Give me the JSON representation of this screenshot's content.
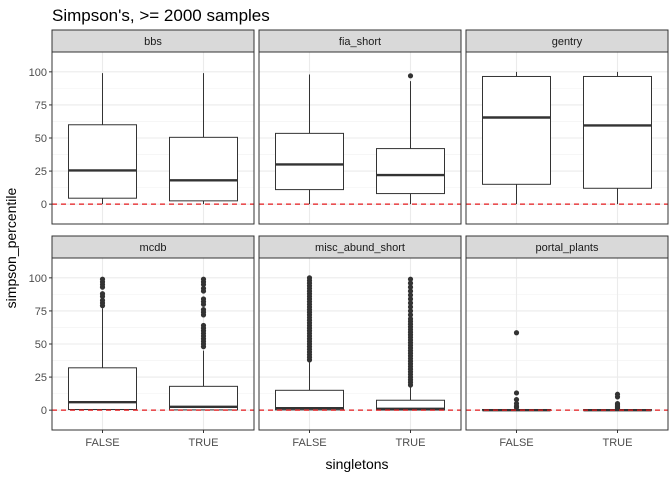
{
  "chart_data": {
    "type": "boxplot",
    "title": "Simpson's, >= 2000 samples",
    "xlabel": "singletons",
    "ylabel": "simpson_percentile",
    "categories": [
      "FALSE",
      "TRUE"
    ],
    "ylim": [
      -15,
      115
    ],
    "y_ticks": [
      0,
      25,
      50,
      75,
      100
    ],
    "y_tick_labels": [
      "0",
      "25",
      "50",
      "75",
      "100"
    ],
    "reference_line": {
      "y": 0,
      "style": "dashed",
      "color": "#e41a1c"
    },
    "grid": true,
    "facets": [
      {
        "name": "bbs",
        "boxes": [
          {
            "category": "FALSE",
            "min": 0,
            "q1": 4.5,
            "median": 25.5,
            "q3": 60,
            "max": 99,
            "outliers": []
          },
          {
            "category": "TRUE",
            "min": 0,
            "q1": 2.5,
            "median": 18,
            "q3": 50.5,
            "max": 99,
            "outliers": []
          }
        ]
      },
      {
        "name": "fia_short",
        "boxes": [
          {
            "category": "FALSE",
            "min": 0,
            "q1": 11,
            "median": 30,
            "q3": 53.5,
            "max": 98,
            "outliers": []
          },
          {
            "category": "TRUE",
            "min": 0,
            "q1": 8,
            "median": 22,
            "q3": 42,
            "max": 93,
            "outliers": [
              97
            ]
          }
        ]
      },
      {
        "name": "gentry",
        "boxes": [
          {
            "category": "FALSE",
            "min": 0,
            "q1": 15,
            "median": 65.5,
            "q3": 96.5,
            "max": 100,
            "outliers": []
          },
          {
            "category": "TRUE",
            "min": 0,
            "q1": 12,
            "median": 59.5,
            "q3": 96.5,
            "max": 100,
            "outliers": []
          }
        ]
      },
      {
        "name": "mcdb",
        "boxes": [
          {
            "category": "FALSE",
            "min": 0,
            "q1": 0.5,
            "median": 6,
            "q3": 32,
            "max": 77,
            "outliers": [
              79,
              81,
              83,
              86,
              88,
              93,
              95,
              97,
              99
            ]
          },
          {
            "category": "TRUE",
            "min": 0,
            "q1": 0.2,
            "median": 2.5,
            "q3": 18,
            "max": 45,
            "outliers": [
              48,
              50,
              52,
              54,
              56,
              58,
              60,
              62,
              64,
              72,
              74,
              76,
              80,
              82,
              84,
              90,
              92,
              95,
              97,
              99
            ]
          }
        ]
      },
      {
        "name": "misc_abund_short",
        "boxes": [
          {
            "category": "FALSE",
            "min": 0,
            "q1": 0.2,
            "median": 1.5,
            "q3": 15,
            "max": 36,
            "outliers": [
              38,
              40,
              42,
              44,
              46,
              48,
              50,
              52,
              54,
              56,
              58,
              60,
              62,
              64,
              66,
              68,
              70,
              72,
              74,
              76,
              78,
              80,
              82,
              84,
              86,
              88,
              90,
              92,
              94,
              96,
              98,
              100
            ]
          },
          {
            "category": "TRUE",
            "min": 0,
            "q1": 0.1,
            "median": 1,
            "q3": 7.5,
            "max": 18,
            "outliers": [
              19,
              21,
              23,
              25,
              27,
              29,
              31,
              33,
              35,
              37,
              39,
              41,
              43,
              45,
              47,
              49,
              51,
              53,
              55,
              57,
              59,
              61,
              63,
              65,
              67,
              69,
              72,
              75,
              78,
              81,
              84,
              87,
              90,
              93,
              96,
              99
            ]
          }
        ]
      },
      {
        "name": "portal_plants",
        "boxes": [
          {
            "category": "FALSE",
            "min": 0,
            "q1": 0,
            "median": 0,
            "q3": 0.5,
            "max": 1,
            "outliers": [
              2,
              3,
              5,
              8,
              13,
              58.5
            ]
          },
          {
            "category": "TRUE",
            "min": 0,
            "q1": 0,
            "median": 0,
            "q3": 0.4,
            "max": 0.8,
            "outliers": [
              1.5,
              2,
              3,
              4,
              5,
              10,
              12
            ]
          }
        ]
      }
    ]
  }
}
